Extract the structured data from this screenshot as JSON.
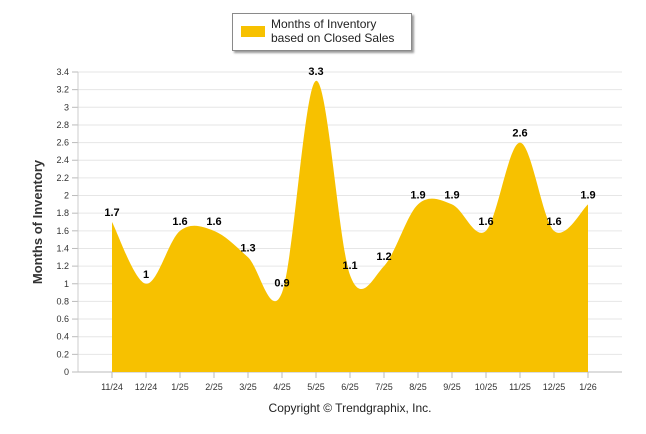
{
  "chart_data": {
    "type": "area",
    "series": [
      {
        "name": "Months of Inventory based on Closed Sales",
        "color": "#F7C100",
        "values": [
          1.7,
          1,
          1.6,
          1.6,
          1.3,
          0.9,
          3.3,
          1.1,
          1.2,
          1.9,
          1.9,
          1.6,
          2.6,
          1.6,
          1.9
        ]
      }
    ],
    "categories": [
      "11/24",
      "12/24",
      "1/25",
      "2/25",
      "3/25",
      "4/25",
      "5/25",
      "6/25",
      "7/25",
      "8/25",
      "9/25",
      "10/25",
      "11/25",
      "12/25",
      "1/26"
    ],
    "data_labels": [
      "1.7",
      "1",
      "1.6",
      "1.6",
      "1.3",
      "0.9",
      "3.3",
      "1.1",
      "1.2",
      "1.9",
      "1.9",
      "1.6",
      "2.6",
      "1.6",
      "1.9"
    ],
    "ylabel": "Months of Inventory",
    "xlabel": "",
    "ylim": [
      0,
      3.4
    ],
    "yticks": [
      "0",
      "0.2",
      "0.4",
      "0.6",
      "0.8",
      "1",
      "1.2",
      "1.4",
      "1.6",
      "1.8",
      "2",
      "2.2",
      "2.4",
      "2.6",
      "2.8",
      "3",
      "3.2",
      "3.4"
    ],
    "grid": true,
    "legend_position": "top-center"
  },
  "legend": {
    "label": "Months of Inventory based on Closed Sales"
  },
  "footer": {
    "copyright": "Copyright © Trendgraphix, Inc."
  }
}
